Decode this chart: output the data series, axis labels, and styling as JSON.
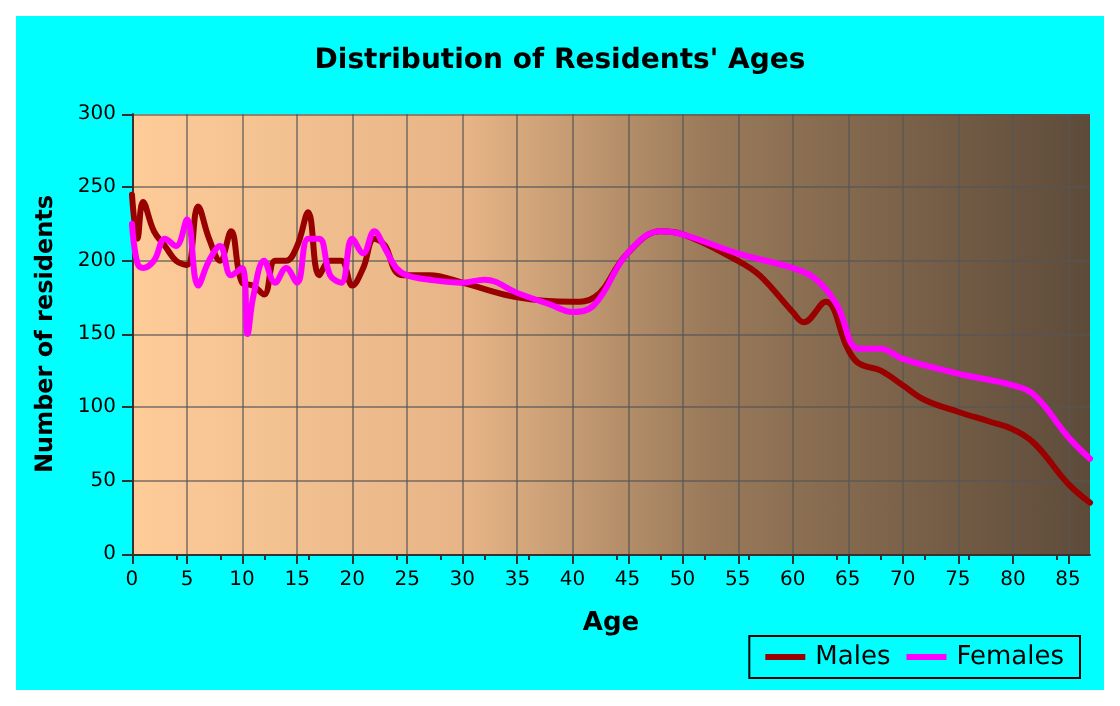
{
  "chart_data": {
    "type": "line",
    "title": "Distribution of Residents' Ages",
    "xlabel": "Age",
    "ylabel": "Number of residents",
    "xlim": [
      0,
      87
    ],
    "xticks": [
      0,
      5,
      10,
      15,
      20,
      25,
      30,
      35,
      40,
      45,
      50,
      55,
      60,
      65,
      70,
      75,
      80,
      85
    ],
    "ylim": [
      0,
      300
    ],
    "yticks": [
      0,
      50,
      100,
      150,
      200,
      250,
      300
    ],
    "grid": true,
    "legend": "bottom right",
    "marker": "none",
    "line_style": "solid",
    "series": [
      {
        "name": "Males",
        "color": "#990000",
        "x": [
          0,
          0.5,
          1,
          2,
          3,
          4,
          5,
          6,
          7,
          8,
          9,
          10,
          11,
          12,
          13,
          14,
          15,
          16,
          17,
          18,
          19,
          20,
          21,
          22,
          23,
          24,
          25,
          27,
          30,
          35,
          40,
          42,
          45,
          48,
          50,
          55,
          57,
          60,
          61,
          63,
          65,
          66,
          68,
          70,
          72,
          75,
          78,
          80,
          82,
          85,
          87
        ],
        "values": [
          245,
          215,
          240,
          220,
          210,
          200,
          197,
          237,
          215,
          200,
          220,
          185,
          183,
          177,
          200,
          200,
          210,
          233,
          190,
          200,
          200,
          183,
          195,
          215,
          210,
          192,
          190,
          190,
          185,
          175,
          172,
          175,
          205,
          220,
          218,
          200,
          190,
          165,
          158,
          172,
          140,
          130,
          125,
          115,
          105,
          97,
          90,
          85,
          75,
          48,
          35
        ]
      },
      {
        "name": "Females",
        "color": "#ff00ff",
        "x": [
          0,
          0.5,
          1,
          2,
          3,
          4,
          5,
          6,
          7,
          8,
          9,
          10,
          10.5,
          11,
          12,
          13,
          14,
          15,
          16,
          17,
          18,
          19,
          20,
          21,
          22,
          23,
          24,
          25,
          27,
          30,
          32,
          35,
          38,
          40,
          42,
          45,
          48,
          50,
          55,
          60,
          62,
          64,
          66,
          68,
          70,
          75,
          80,
          82,
          85,
          87
        ],
        "values": [
          225,
          198,
          195,
          200,
          215,
          210,
          228,
          183,
          200,
          210,
          190,
          195,
          150,
          175,
          200,
          185,
          195,
          185,
          215,
          215,
          190,
          185,
          215,
          205,
          220,
          208,
          195,
          190,
          187,
          185,
          187,
          178,
          170,
          165,
          170,
          205,
          220,
          218,
          205,
          195,
          188,
          170,
          140,
          140,
          133,
          123,
          115,
          108,
          80,
          65
        ]
      }
    ]
  }
}
